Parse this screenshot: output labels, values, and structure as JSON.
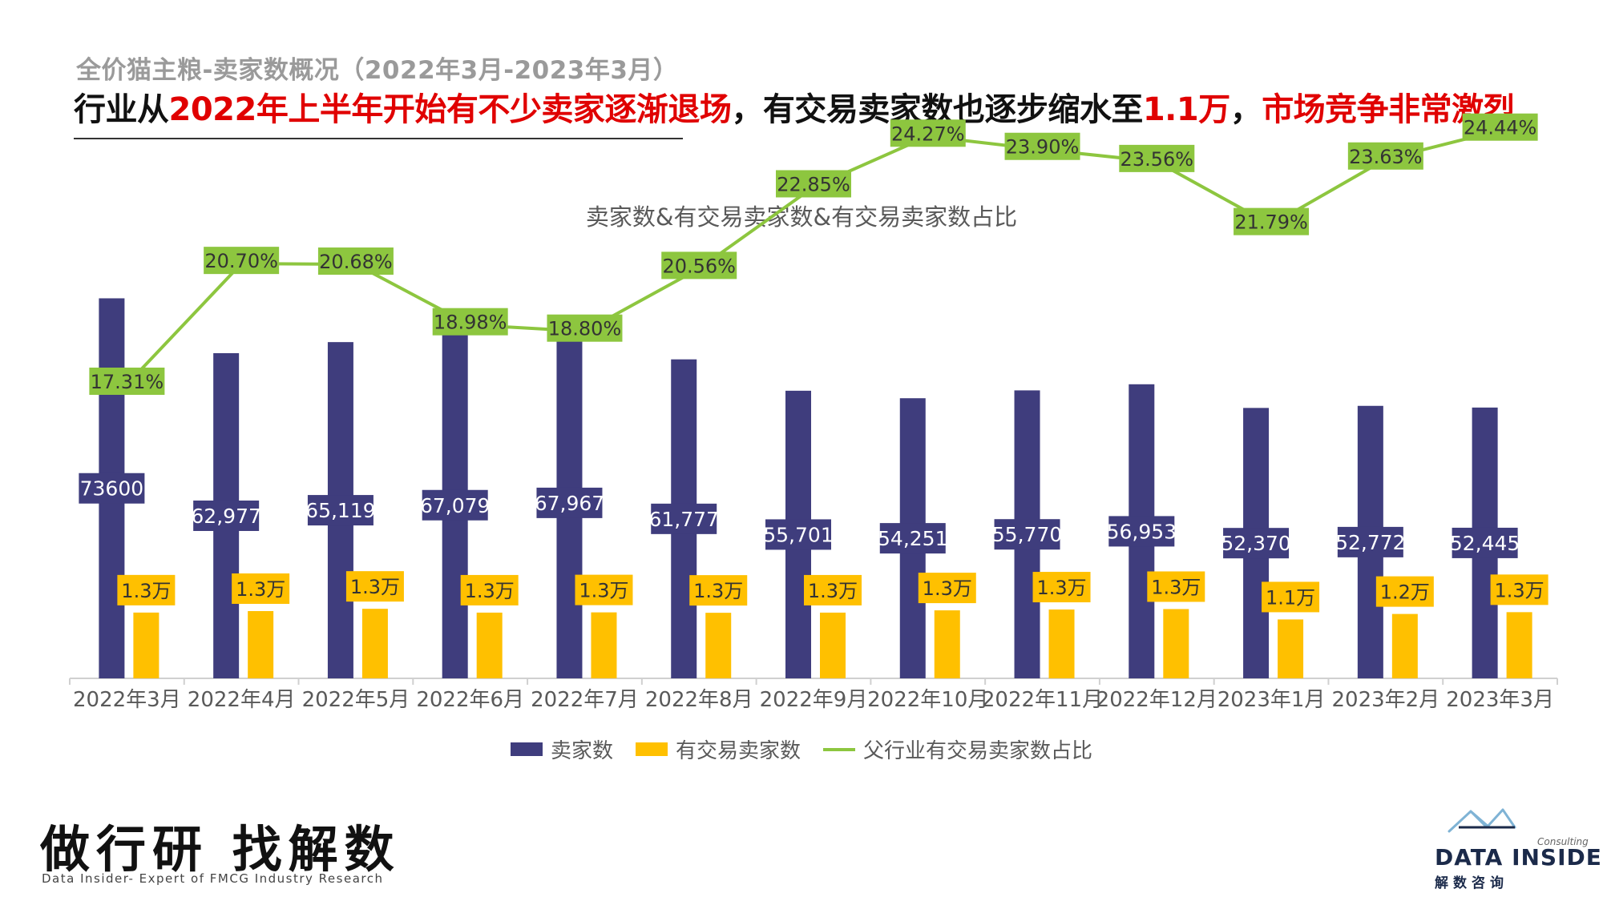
{
  "header": {
    "subtitle": "全价猫主粮-卖家数概况（2022年3月-2023年3月）",
    "headline": {
      "p1": "行业从",
      "p2": "2022年上半年开始有不少卖家逐渐退场",
      "p3": "，有交易卖家数也逐步缩水至",
      "p4": "1.1万",
      "p5": "，",
      "p6": "市场竞争非常激烈"
    }
  },
  "chart_data": {
    "type": "bar",
    "title": "卖家数&有交易卖家数&有交易卖家数占比",
    "categories": [
      "2022年3月",
      "2022年4月",
      "2022年5月",
      "2022年6月",
      "2022年7月",
      "2022年8月",
      "2022年9月",
      "2022年10月",
      "2022年11月",
      "2022年12月",
      "2023年1月",
      "2023年2月",
      "2023年3月"
    ],
    "series": [
      {
        "name": "卖家数",
        "type": "bar",
        "color": "#3f3d7d",
        "values": [
          73600,
          62977,
          65119,
          67079,
          67967,
          61777,
          55701,
          54251,
          55770,
          56953,
          52370,
          52772,
          52445
        ],
        "labels": [
          "73600",
          "62,977",
          "65,119",
          "67,079",
          "67,967",
          "61,777",
          "55,701",
          "54,251",
          "55,770",
          "56,953",
          "52,370",
          "52,772",
          "52,445"
        ]
      },
      {
        "name": "有交易卖家数",
        "type": "bar",
        "color": "#ffc000",
        "values": [
          12740,
          13030,
          13470,
          12730,
          12780,
          12700,
          12730,
          13170,
          13330,
          13420,
          11410,
          12470,
          12820
        ],
        "labels": [
          "1.3万",
          "1.3万",
          "1.3万",
          "1.3万",
          "1.3万",
          "1.3万",
          "1.3万",
          "1.3万",
          "1.3万",
          "1.3万",
          "1.1万",
          "1.2万",
          "1.3万"
        ]
      },
      {
        "name": "父行业有交易卖家数占比",
        "type": "line",
        "color": "#8dc63f",
        "values": [
          17.31,
          20.7,
          20.68,
          18.98,
          18.8,
          20.56,
          22.85,
          24.27,
          23.9,
          23.56,
          21.79,
          23.63,
          24.44
        ],
        "labels": [
          "17.31%",
          "20.70%",
          "20.68%",
          "18.98%",
          "18.80%",
          "20.56%",
          "22.85%",
          "24.27%",
          "23.90%",
          "23.56%",
          "21.79%",
          "23.63%",
          "24.44%"
        ]
      }
    ],
    "legend_position": "bottom",
    "grid": false
  },
  "footer": {
    "slogan": "做行研 找解数",
    "slogan_sub": "Data Insider- Expert of FMCG Industry Research",
    "logo_consulting": "Consulting",
    "logo_name": "DATA INSIDER",
    "logo_cn": "解数咨询"
  }
}
